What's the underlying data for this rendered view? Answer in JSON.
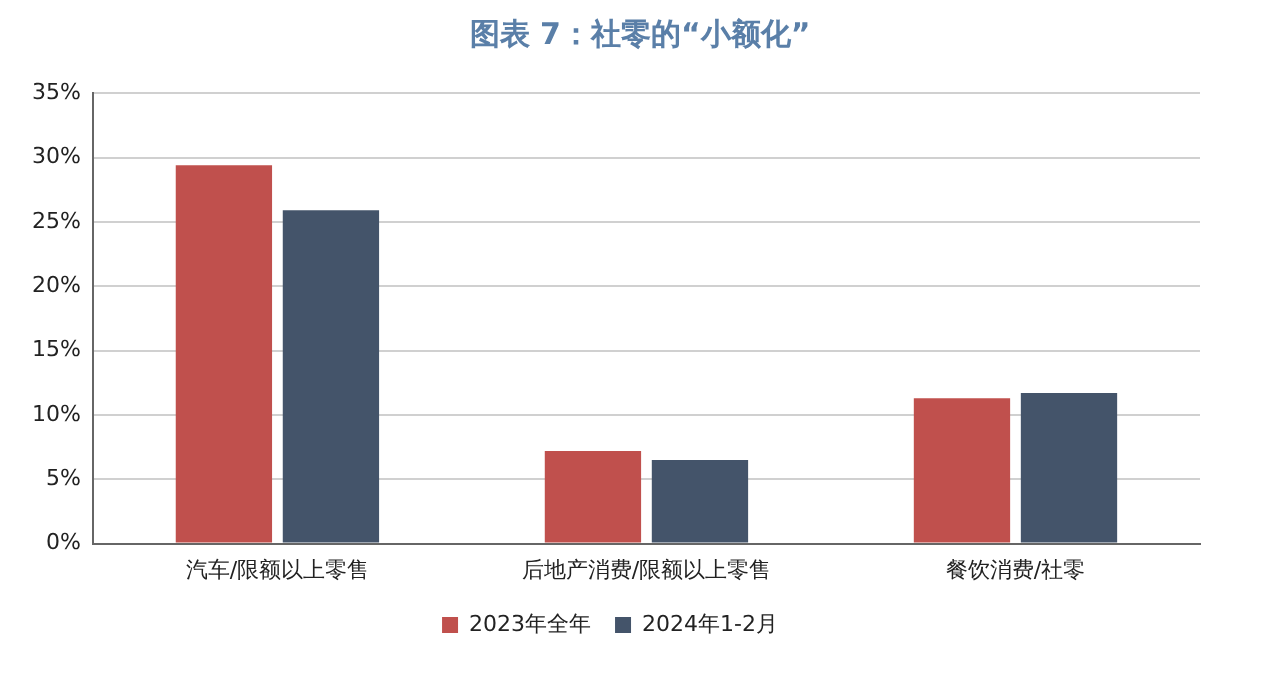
{
  "chart_data": {
    "type": "bar",
    "title": "图表 7：社零的“小额化”",
    "categories": [
      "汽车/限额以上零售",
      "后地产消费/限额以上零售",
      "餐饮消费/社零"
    ],
    "series": [
      {
        "name": "2023年全年",
        "color": "#c0504d",
        "values": [
          29.4,
          7.2,
          11.3
        ]
      },
      {
        "name": "2024年1-2月",
        "color": "#44546a",
        "values": [
          25.9,
          6.5,
          11.7
        ]
      }
    ],
    "ylim": [
      0,
      35
    ],
    "yticks": [
      {
        "value": 0,
        "label": "0%"
      },
      {
        "value": 5,
        "label": "5%"
      },
      {
        "value": 10,
        "label": "10%"
      },
      {
        "value": 15,
        "label": "15%"
      },
      {
        "value": 20,
        "label": "20%"
      },
      {
        "value": 25,
        "label": "25%"
      },
      {
        "value": 30,
        "label": "30%"
      },
      {
        "value": 35,
        "label": "35%"
      }
    ],
    "grid": "y",
    "legend": "bottom"
  }
}
